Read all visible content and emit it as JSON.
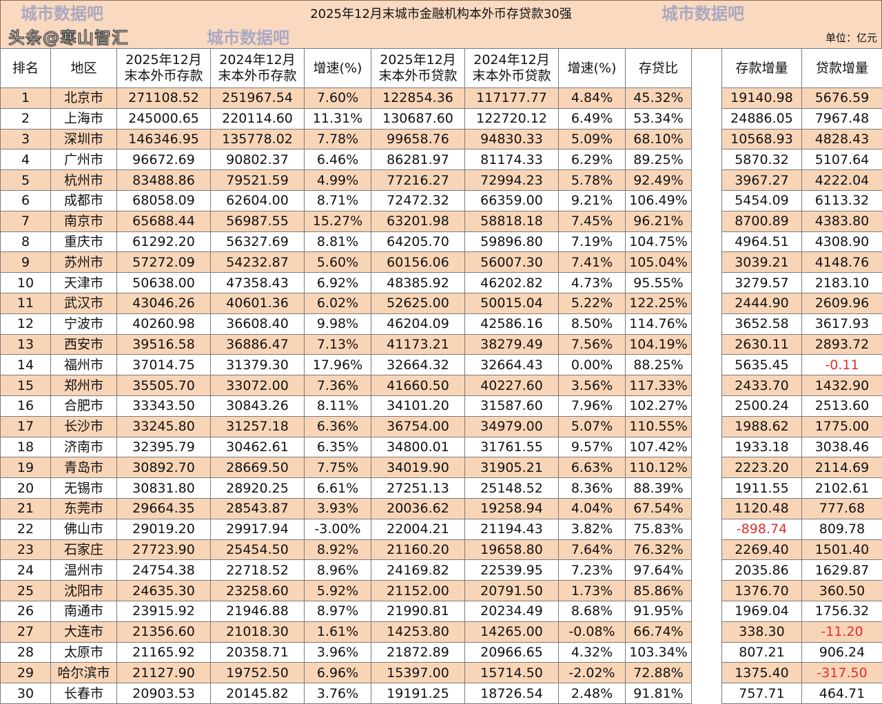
{
  "title": "2025年12月末城市金融机构本外币存贷款30强",
  "unit": "单位：亿元",
  "watermarks": {
    "main": "头条@寒山智汇",
    "faint": "城市数据吧"
  },
  "colors": {
    "odd_row": "#f9d5b8",
    "negative": "#e02d2d",
    "header_bg": "#f9d9c0"
  },
  "chart_data": {
    "type": "table",
    "title": "2025年12月末城市金融机构本外币存贷款30强",
    "columns": [
      "排名",
      "地区",
      "2025年12月\n末本外币存款",
      "2024年12月\n末本外币存款",
      "增速(%)",
      "2025年12月\n末本外币贷款",
      "2024年12月\n末本外币贷款",
      "增速(%)",
      "存贷比",
      "",
      "存款增量",
      "贷款增量"
    ],
    "rows": [
      [
        "1",
        "北京市",
        "271108.52",
        "251967.54",
        "7.60%",
        "122854.36",
        "117177.77",
        "4.84%",
        "45.32%",
        "",
        "19140.98",
        "5676.59"
      ],
      [
        "2",
        "上海市",
        "245000.65",
        "220114.60",
        "11.31%",
        "130687.60",
        "122720.12",
        "6.49%",
        "53.34%",
        "",
        "24886.05",
        "7967.48"
      ],
      [
        "3",
        "深圳市",
        "146346.95",
        "135778.02",
        "7.78%",
        "99658.76",
        "94830.33",
        "5.09%",
        "68.10%",
        "",
        "10568.93",
        "4828.43"
      ],
      [
        "4",
        "广州市",
        "96672.69",
        "90802.37",
        "6.46%",
        "86281.97",
        "81174.33",
        "6.29%",
        "89.25%",
        "",
        "5870.32",
        "5107.64"
      ],
      [
        "5",
        "杭州市",
        "83488.86",
        "79521.59",
        "4.99%",
        "77216.27",
        "72994.23",
        "5.78%",
        "92.49%",
        "",
        "3967.27",
        "4222.04"
      ],
      [
        "6",
        "成都市",
        "68058.09",
        "62604.00",
        "8.71%",
        "72472.32",
        "66359.00",
        "9.21%",
        "106.49%",
        "",
        "5454.09",
        "6113.32"
      ],
      [
        "7",
        "南京市",
        "65688.44",
        "56987.55",
        "15.27%",
        "63201.98",
        "58818.18",
        "7.45%",
        "96.21%",
        "",
        "8700.89",
        "4383.80"
      ],
      [
        "8",
        "重庆市",
        "61292.20",
        "56327.69",
        "8.81%",
        "64205.70",
        "59896.80",
        "7.19%",
        "104.75%",
        "",
        "4964.51",
        "4308.90"
      ],
      [
        "9",
        "苏州市",
        "57272.09",
        "54232.87",
        "5.60%",
        "60156.06",
        "56007.30",
        "7.41%",
        "105.04%",
        "",
        "3039.21",
        "4148.76"
      ],
      [
        "10",
        "天津市",
        "50638.00",
        "47358.43",
        "6.92%",
        "48385.92",
        "46202.82",
        "4.73%",
        "95.55%",
        "",
        "3279.57",
        "2183.10"
      ],
      [
        "11",
        "武汉市",
        "43046.26",
        "40601.36",
        "6.02%",
        "52625.00",
        "50015.04",
        "5.22%",
        "122.25%",
        "",
        "2444.90",
        "2609.96"
      ],
      [
        "12",
        "宁波市",
        "40260.98",
        "36608.40",
        "9.98%",
        "46204.09",
        "42586.16",
        "8.50%",
        "114.76%",
        "",
        "3652.58",
        "3617.93"
      ],
      [
        "13",
        "西安市",
        "39516.58",
        "36886.47",
        "7.13%",
        "41173.21",
        "38279.49",
        "7.56%",
        "104.19%",
        "",
        "2630.11",
        "2893.72"
      ],
      [
        "14",
        "福州市",
        "37014.75",
        "31379.30",
        "17.96%",
        "32664.32",
        "32664.43",
        "0.00%",
        "88.25%",
        "",
        "5635.45",
        "-0.11"
      ],
      [
        "15",
        "郑州市",
        "35505.70",
        "33072.00",
        "7.36%",
        "41660.50",
        "40227.60",
        "3.56%",
        "117.33%",
        "",
        "2433.70",
        "1432.90"
      ],
      [
        "16",
        "合肥市",
        "33343.50",
        "30843.26",
        "8.11%",
        "34101.20",
        "31587.60",
        "7.96%",
        "102.27%",
        "",
        "2500.24",
        "2513.60"
      ],
      [
        "17",
        "长沙市",
        "33245.80",
        "31257.18",
        "6.36%",
        "36754.00",
        "34979.00",
        "5.07%",
        "110.55%",
        "",
        "1988.62",
        "1775.00"
      ],
      [
        "18",
        "济南市",
        "32395.79",
        "30462.61",
        "6.35%",
        "34800.01",
        "31761.55",
        "9.57%",
        "107.42%",
        "",
        "1933.18",
        "3038.46"
      ],
      [
        "19",
        "青岛市",
        "30892.70",
        "28669.50",
        "7.75%",
        "34019.90",
        "31905.21",
        "6.63%",
        "110.12%",
        "",
        "2223.20",
        "2114.69"
      ],
      [
        "20",
        "无锡市",
        "30831.80",
        "28920.25",
        "6.61%",
        "27251.13",
        "25148.52",
        "8.36%",
        "88.39%",
        "",
        "1911.55",
        "2102.61"
      ],
      [
        "21",
        "东莞市",
        "29664.35",
        "28543.87",
        "3.93%",
        "20036.62",
        "19258.94",
        "4.04%",
        "67.54%",
        "",
        "1120.48",
        "777.68"
      ],
      [
        "22",
        "佛山市",
        "29019.20",
        "29917.94",
        "-3.00%",
        "22004.21",
        "21194.43",
        "3.82%",
        "75.83%",
        "",
        "-898.74",
        "809.78"
      ],
      [
        "23",
        "石家庄",
        "27723.90",
        "25454.50",
        "8.92%",
        "21160.20",
        "19658.80",
        "7.64%",
        "76.32%",
        "",
        "2269.40",
        "1501.40"
      ],
      [
        "24",
        "温州市",
        "24754.38",
        "22718.52",
        "8.96%",
        "24169.82",
        "22539.95",
        "7.23%",
        "97.64%",
        "",
        "2035.86",
        "1629.87"
      ],
      [
        "25",
        "沈阳市",
        "24635.30",
        "23258.60",
        "5.92%",
        "21152.00",
        "20791.50",
        "1.73%",
        "85.86%",
        "",
        "1376.70",
        "360.50"
      ],
      [
        "26",
        "南通市",
        "23915.92",
        "21946.88",
        "8.97%",
        "21990.81",
        "20234.49",
        "8.68%",
        "91.95%",
        "",
        "1969.04",
        "1756.32"
      ],
      [
        "27",
        "大连市",
        "21356.60",
        "21018.30",
        "1.61%",
        "14253.80",
        "14265.00",
        "-0.08%",
        "66.74%",
        "",
        "338.30",
        "-11.20"
      ],
      [
        "28",
        "太原市",
        "21165.92",
        "20358.71",
        "3.96%",
        "21872.89",
        "20966.65",
        "4.32%",
        "103.34%",
        "",
        "807.21",
        "906.24"
      ],
      [
        "29",
        "哈尔滨市",
        "21127.90",
        "19752.50",
        "6.96%",
        "15397.00",
        "15714.50",
        "-2.02%",
        "72.88%",
        "",
        "1375.40",
        "-317.50"
      ],
      [
        "30",
        "长春市",
        "20903.53",
        "20145.82",
        "3.76%",
        "19191.25",
        "18726.54",
        "2.48%",
        "91.81%",
        "",
        "757.71",
        "464.71"
      ]
    ],
    "negative_highlight_columns": [
      "存款增量",
      "贷款增量"
    ]
  }
}
